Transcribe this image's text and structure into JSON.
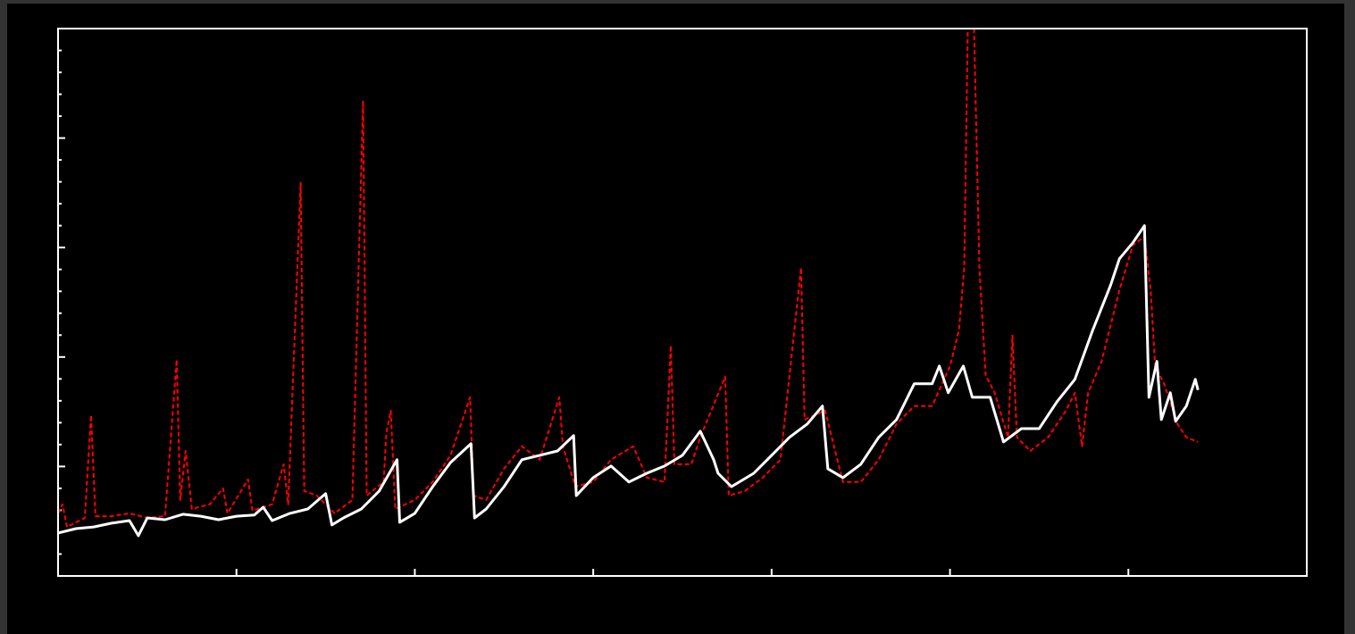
{
  "chart_data": {
    "type": "line",
    "xlim": [
      0,
      1400
    ],
    "xticks": [
      0,
      200,
      400,
      600,
      800,
      1000,
      1200,
      1400
    ],
    "ylim": [
      0,
      25
    ],
    "yticks": [
      0,
      5,
      10,
      15,
      20,
      25
    ],
    "yminorticks": [
      1,
      2,
      3,
      4,
      6,
      7,
      8,
      9,
      11,
      12,
      13,
      14,
      16,
      17,
      18,
      19,
      21,
      22,
      23,
      24
    ],
    "background": "#000000",
    "axis_color": "#ffffff",
    "series": [
      {
        "color": "#ff0000",
        "dash": true,
        "x": [
          0,
          5,
          10,
          30,
          37,
          42,
          60,
          80,
          100,
          120,
          133,
          137,
          143,
          150,
          170,
          185,
          190,
          213,
          218,
          240,
          253,
          258,
          272,
          276,
          290,
          310,
          330,
          342,
          346,
          365,
          368,
          373,
          378,
          400,
          420,
          440,
          462,
          466,
          480,
          500,
          520,
          540,
          562,
          566,
          580,
          600,
          620,
          645,
          660,
          680,
          687,
          691,
          710,
          720,
          748,
          752,
          770,
          790,
          810,
          833,
          837,
          860,
          880,
          900,
          920,
          940,
          960,
          980,
          1000,
          1010,
          1016,
          1020,
          1027,
          1033,
          1040,
          1050,
          1065,
          1070,
          1075,
          1090,
          1110,
          1130,
          1140,
          1148,
          1155,
          1170,
          1190,
          1205,
          1218,
          1225,
          1230,
          1240,
          1255,
          1265,
          1278
        ],
        "values": [
          2.86,
          3.27,
          2.24,
          2.65,
          7.35,
          2.73,
          2.73,
          2.86,
          2.65,
          2.73,
          9.88,
          3.47,
          5.71,
          3.06,
          3.27,
          4.0,
          2.86,
          4.41,
          2.98,
          3.27,
          5.1,
          3.27,
          17.96,
          3.88,
          3.67,
          2.86,
          3.47,
          21.71,
          3.67,
          4.29,
          6.53,
          7.55,
          3.06,
          3.47,
          4.29,
          5.51,
          8.16,
          3.67,
          3.47,
          4.9,
          5.92,
          5.31,
          8.16,
          5.92,
          4.08,
          4.29,
          5.31,
          5.92,
          4.49,
          4.29,
          10.53,
          5.1,
          5.1,
          6.33,
          9.1,
          3.67,
          3.88,
          4.49,
          5.31,
          14.08,
          7.14,
          7.55,
          4.29,
          4.29,
          5.31,
          6.94,
          7.76,
          7.76,
          9.59,
          11.22,
          14.08,
          25,
          25,
          14.08,
          9.18,
          8.37,
          6.33,
          10.98,
          6.33,
          5.71,
          6.33,
          7.55,
          8.37,
          5.92,
          8.37,
          9.8,
          13.06,
          15.1,
          15.51,
          13.06,
          9.59,
          8.78,
          6.94,
          6.33,
          6.12
        ]
      },
      {
        "color": "#ffffff",
        "dash": false,
        "x": [
          0,
          20,
          40,
          60,
          80,
          90,
          100,
          120,
          140,
          160,
          180,
          200,
          220,
          230,
          240,
          260,
          280,
          300,
          307,
          320,
          340,
          360,
          380,
          383,
          400,
          420,
          440,
          463,
          467,
          480,
          500,
          520,
          540,
          560,
          578,
          581,
          600,
          620,
          640,
          660,
          680,
          700,
          720,
          735,
          740,
          755,
          780,
          800,
          820,
          840,
          857,
          863,
          880,
          900,
          920,
          940,
          960,
          980,
          988,
          998,
          1015,
          1025,
          1045,
          1060,
          1080,
          1100,
          1120,
          1140,
          1160,
          1180,
          1190,
          1205,
          1218,
          1223,
          1232,
          1237,
          1247,
          1253,
          1265,
          1275,
          1278
        ],
        "values": [
          1.96,
          2.16,
          2.24,
          2.41,
          2.53,
          1.84,
          2.65,
          2.57,
          2.82,
          2.73,
          2.57,
          2.73,
          2.78,
          3.14,
          2.53,
          2.86,
          3.06,
          3.76,
          2.33,
          2.65,
          3.06,
          3.88,
          5.31,
          2.45,
          2.86,
          4.08,
          5.18,
          6.04,
          2.65,
          3.06,
          4.08,
          5.31,
          5.51,
          5.71,
          6.41,
          3.67,
          4.49,
          5.02,
          4.29,
          4.69,
          5.02,
          5.51,
          6.61,
          5.31,
          4.69,
          4.08,
          4.69,
          5.51,
          6.33,
          6.94,
          7.76,
          4.9,
          4.49,
          5.1,
          6.33,
          7.14,
          8.78,
          8.78,
          9.59,
          8.37,
          9.59,
          8.16,
          8.16,
          6.12,
          6.73,
          6.73,
          7.96,
          8.98,
          11.22,
          13.27,
          14.49,
          15.22,
          16.0,
          8.16,
          9.8,
          7.14,
          8.37,
          7.06,
          7.76,
          8.98,
          8.49
        ]
      }
    ]
  }
}
